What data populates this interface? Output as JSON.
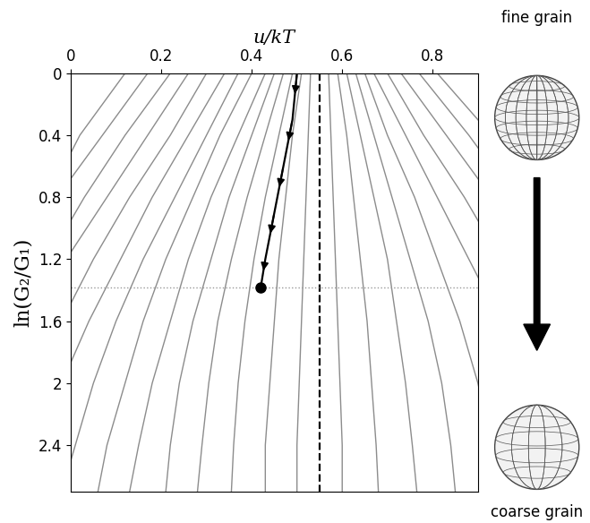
{
  "chart_data": {
    "type": "line",
    "xlabel": "u/kT",
    "ylabel": "ln(G₂/G₁)",
    "annotations": [
      "fine grain",
      "coarse grain"
    ],
    "xlim": [
      0,
      0.9
    ],
    "xticks": [
      0,
      0.2,
      0.4,
      0.6,
      0.8
    ],
    "ylim": [
      2.7,
      0
    ],
    "yticks": [
      0,
      0.4,
      0.8,
      1.2,
      1.6,
      2,
      2.4
    ],
    "grid": false,
    "series": [
      {
        "color": "#8c8c8c",
        "line_style": "solid",
        "x": [
          0.53,
          0.525,
          0.52,
          0.515,
          0.51,
          0.505,
          0.5,
          0.5
        ],
        "values": [
          0,
          0.4,
          0.8,
          1.2,
          1.6,
          2.0,
          2.4,
          2.7
        ]
      },
      {
        "color": "#8c8c8c",
        "line_style": "solid",
        "x": [
          0.51,
          0.49,
          0.475,
          0.46,
          0.45,
          0.44,
          0.43,
          0.43
        ],
        "values": [
          0,
          0.4,
          0.8,
          1.2,
          1.6,
          2.0,
          2.4,
          2.7
        ]
      },
      {
        "color": "#8c8c8c",
        "line_style": "solid",
        "x": [
          0.49,
          0.46,
          0.43,
          0.405,
          0.385,
          0.37,
          0.36,
          0.355
        ],
        "values": [
          0,
          0.4,
          0.8,
          1.2,
          1.6,
          2.0,
          2.4,
          2.7
        ]
      },
      {
        "color": "#8c8c8c",
        "line_style": "solid",
        "x": [
          0.47,
          0.43,
          0.39,
          0.355,
          0.325,
          0.305,
          0.29,
          0.28
        ],
        "values": [
          0,
          0.4,
          0.8,
          1.2,
          1.6,
          2.0,
          2.4,
          2.7
        ]
      },
      {
        "color": "#8c8c8c",
        "line_style": "solid",
        "x": [
          0.45,
          0.4,
          0.35,
          0.31,
          0.27,
          0.24,
          0.22,
          0.21
        ],
        "values": [
          0,
          0.4,
          0.8,
          1.2,
          1.6,
          2.0,
          2.4,
          2.7
        ]
      },
      {
        "color": "#8c8c8c",
        "line_style": "solid",
        "x": [
          0.43,
          0.37,
          0.31,
          0.26,
          0.22,
          0.18,
          0.15,
          0.13
        ],
        "values": [
          0,
          0.4,
          0.8,
          1.2,
          1.6,
          2.0,
          2.4,
          2.7
        ]
      },
      {
        "color": "#8c8c8c",
        "line_style": "solid",
        "x": [
          0.4,
          0.33,
          0.27,
          0.21,
          0.16,
          0.12,
          0.08,
          0.06
        ],
        "values": [
          0,
          0.4,
          0.8,
          1.2,
          1.6,
          2.0,
          2.4,
          2.7
        ]
      },
      {
        "color": "#8c8c8c",
        "line_style": "solid",
        "x": [
          0.37,
          0.3,
          0.23,
          0.16,
          0.1,
          0.05,
          0.01,
          -0.02
        ],
        "values": [
          0,
          0.4,
          0.8,
          1.2,
          1.6,
          2.0,
          2.4,
          2.7
        ]
      },
      {
        "color": "#8c8c8c",
        "line_style": "solid",
        "x": [
          0.34,
          0.26,
          0.18,
          0.11,
          0.04,
          -0.02
        ],
        "values": [
          0,
          0.4,
          0.8,
          1.2,
          1.6,
          2.0
        ]
      },
      {
        "color": "#8c8c8c",
        "line_style": "solid",
        "x": [
          0.3,
          0.22,
          0.13,
          0.05,
          -0.02
        ],
        "values": [
          0,
          0.4,
          0.8,
          1.2,
          1.6
        ]
      },
      {
        "color": "#8c8c8c",
        "line_style": "solid",
        "x": [
          0.26,
          0.17,
          0.08,
          -0.01
        ],
        "values": [
          0,
          0.4,
          0.8,
          1.2
        ]
      },
      {
        "color": "#8c8c8c",
        "line_style": "solid",
        "x": [
          0.22,
          0.12,
          0.03,
          -0.05
        ],
        "values": [
          0,
          0.4,
          0.8,
          1.2
        ]
      },
      {
        "color": "#8c8c8c",
        "line_style": "solid",
        "x": [
          0.17,
          0.07,
          -0.03
        ],
        "values": [
          0,
          0.4,
          0.8
        ]
      },
      {
        "color": "#8c8c8c",
        "line_style": "solid",
        "x": [
          0.12,
          0.02,
          -0.05
        ],
        "values": [
          0,
          0.4,
          0.8
        ]
      },
      {
        "color": "#8c8c8c",
        "line_style": "solid",
        "x": [
          0.57,
          0.575,
          0.58,
          0.585,
          0.59,
          0.595,
          0.6,
          0.6
        ],
        "values": [
          0,
          0.4,
          0.8,
          1.2,
          1.6,
          2.0,
          2.4,
          2.7
        ]
      },
      {
        "color": "#8c8c8c",
        "line_style": "solid",
        "x": [
          0.59,
          0.61,
          0.625,
          0.64,
          0.655,
          0.665,
          0.675,
          0.68
        ],
        "values": [
          0,
          0.4,
          0.8,
          1.2,
          1.6,
          2.0,
          2.4,
          2.7
        ]
      },
      {
        "color": "#8c8c8c",
        "line_style": "solid",
        "x": [
          0.61,
          0.64,
          0.67,
          0.7,
          0.72,
          0.74,
          0.755,
          0.765
        ],
        "values": [
          0,
          0.4,
          0.8,
          1.2,
          1.6,
          2.0,
          2.4,
          2.7
        ]
      },
      {
        "color": "#8c8c8c",
        "line_style": "solid",
        "x": [
          0.63,
          0.67,
          0.71,
          0.75,
          0.79,
          0.82,
          0.84,
          0.85
        ],
        "values": [
          0,
          0.4,
          0.8,
          1.2,
          1.6,
          2.0,
          2.4,
          2.7
        ]
      },
      {
        "color": "#8c8c8c",
        "line_style": "solid",
        "x": [
          0.65,
          0.7,
          0.76,
          0.81,
          0.86,
          0.9,
          0.93
        ],
        "values": [
          0,
          0.4,
          0.8,
          1.2,
          1.6,
          2.0,
          2.4
        ]
      },
      {
        "color": "#8c8c8c",
        "line_style": "solid",
        "x": [
          0.67,
          0.74,
          0.81,
          0.88,
          0.95
        ],
        "values": [
          0,
          0.4,
          0.8,
          1.2,
          1.6
        ]
      },
      {
        "color": "#8c8c8c",
        "line_style": "solid",
        "x": [
          0.7,
          0.78,
          0.87,
          0.95
        ],
        "values": [
          0,
          0.4,
          0.8,
          1.2
        ]
      },
      {
        "color": "#8c8c8c",
        "line_style": "solid",
        "x": [
          0.73,
          0.83,
          0.93
        ],
        "values": [
          0,
          0.4,
          0.8
        ]
      },
      {
        "color": "#8c8c8c",
        "line_style": "solid",
        "x": [
          0.77,
          0.88,
          0.98
        ],
        "values": [
          0,
          0.4,
          0.8
        ]
      },
      {
        "color": "#8c8c8c",
        "line_style": "solid",
        "x": [
          0.81,
          0.93
        ],
        "values": [
          0,
          0.4
        ]
      },
      {
        "color": "#000000",
        "line_style": "dashed",
        "x": [
          0.55,
          0.55
        ],
        "values": [
          0,
          2.7
        ]
      },
      {
        "color": "#999999",
        "line_style": "dotted",
        "x": [
          0,
          0.9
        ],
        "values": [
          1.38,
          1.38
        ]
      },
      {
        "color": "#000000",
        "line_style": "solid",
        "marker": "o",
        "x": [
          0.5,
          0.49,
          0.47,
          0.45,
          0.43,
          0.42
        ],
        "values": [
          0,
          0.3,
          0.6,
          0.9,
          1.2,
          1.38
        ]
      }
    ]
  }
}
